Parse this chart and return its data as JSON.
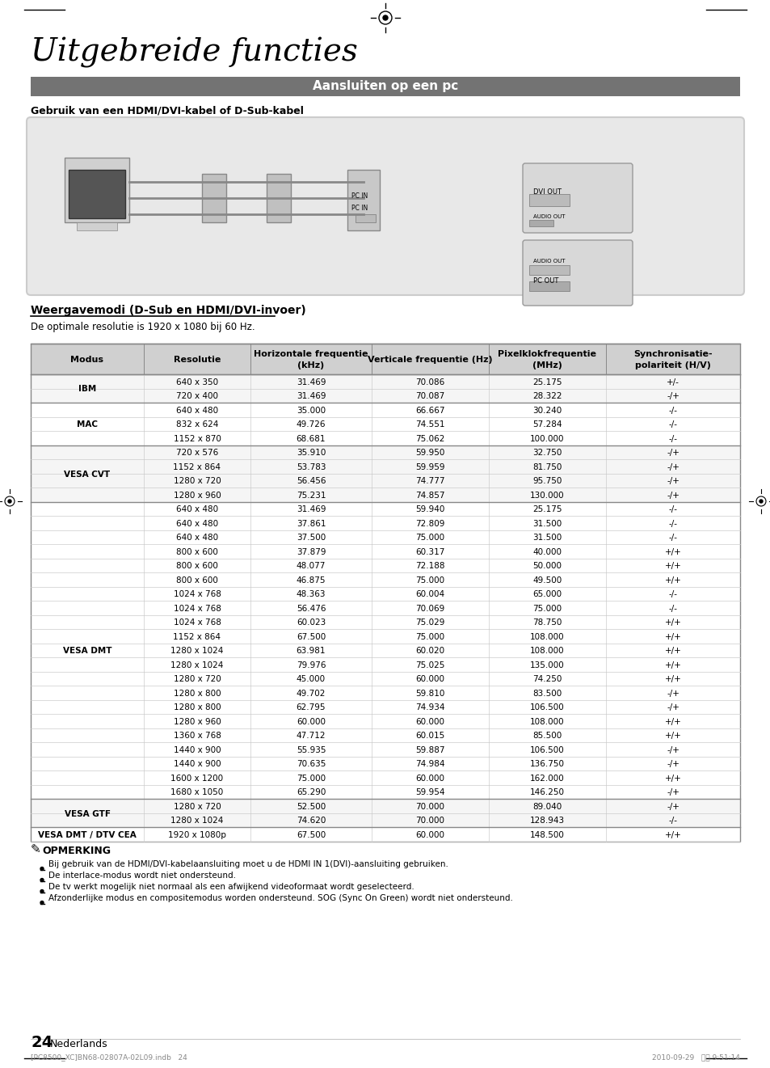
{
  "title": "Uitgebreide functies",
  "section_header": "Aansluiten op een pc",
  "subtitle": "Gebruik van een HDMI/DVI-kabel of D-Sub-kabel",
  "section2_header": "Weergavemodi (D-Sub en HDMI/DVI-invoer)",
  "section2_sub": "De optimale resolutie is 1920 x 1080 bij 60 Hz.",
  "col_headers": [
    "Modus",
    "Resolutie",
    "Horizontale frequentie\n(kHz)",
    "Verticale frequentie (Hz)",
    "Pixelklokfrequentie\n(MHz)",
    "Synchronisatie-\npolariteit (H/V)"
  ],
  "table_data": [
    [
      "IBM",
      "640 x 350",
      "31.469",
      "70.086",
      "25.175",
      "+/-"
    ],
    [
      "",
      "720 x 400",
      "31.469",
      "70.087",
      "28.322",
      "-/+"
    ],
    [
      "MAC",
      "640 x 480",
      "35.000",
      "66.667",
      "30.240",
      "-/-"
    ],
    [
      "",
      "832 x 624",
      "49.726",
      "74.551",
      "57.284",
      "-/-"
    ],
    [
      "",
      "1152 x 870",
      "68.681",
      "75.062",
      "100.000",
      "-/-"
    ],
    [
      "VESA CVT",
      "720 x 576",
      "35.910",
      "59.950",
      "32.750",
      "-/+"
    ],
    [
      "",
      "1152 x 864",
      "53.783",
      "59.959",
      "81.750",
      "-/+"
    ],
    [
      "",
      "1280 x 720",
      "56.456",
      "74.777",
      "95.750",
      "-/+"
    ],
    [
      "",
      "1280 x 960",
      "75.231",
      "74.857",
      "130.000",
      "-/+"
    ],
    [
      "VESA DMT",
      "640 x 480",
      "31.469",
      "59.940",
      "25.175",
      "-/-"
    ],
    [
      "",
      "640 x 480",
      "37.861",
      "72.809",
      "31.500",
      "-/-"
    ],
    [
      "",
      "640 x 480",
      "37.500",
      "75.000",
      "31.500",
      "-/-"
    ],
    [
      "",
      "800 x 600",
      "37.879",
      "60.317",
      "40.000",
      "+/+"
    ],
    [
      "",
      "800 x 600",
      "48.077",
      "72.188",
      "50.000",
      "+/+"
    ],
    [
      "",
      "800 x 600",
      "46.875",
      "75.000",
      "49.500",
      "+/+"
    ],
    [
      "",
      "1024 x 768",
      "48.363",
      "60.004",
      "65.000",
      "-/-"
    ],
    [
      "",
      "1024 x 768",
      "56.476",
      "70.069",
      "75.000",
      "-/-"
    ],
    [
      "",
      "1024 x 768",
      "60.023",
      "75.029",
      "78.750",
      "+/+"
    ],
    [
      "",
      "1152 x 864",
      "67.500",
      "75.000",
      "108.000",
      "+/+"
    ],
    [
      "",
      "1280 x 1024",
      "63.981",
      "60.020",
      "108.000",
      "+/+"
    ],
    [
      "",
      "1280 x 1024",
      "79.976",
      "75.025",
      "135.000",
      "+/+"
    ],
    [
      "",
      "1280 x 720",
      "45.000",
      "60.000",
      "74.250",
      "+/+"
    ],
    [
      "",
      "1280 x 800",
      "49.702",
      "59.810",
      "83.500",
      "-/+"
    ],
    [
      "",
      "1280 x 800",
      "62.795",
      "74.934",
      "106.500",
      "-/+"
    ],
    [
      "",
      "1280 x 960",
      "60.000",
      "60.000",
      "108.000",
      "+/+"
    ],
    [
      "",
      "1360 x 768",
      "47.712",
      "60.015",
      "85.500",
      "+/+"
    ],
    [
      "",
      "1440 x 900",
      "55.935",
      "59.887",
      "106.500",
      "-/+"
    ],
    [
      "",
      "1440 x 900",
      "70.635",
      "74.984",
      "136.750",
      "-/+"
    ],
    [
      "",
      "1600 x 1200",
      "75.000",
      "60.000",
      "162.000",
      "+/+"
    ],
    [
      "",
      "1680 x 1050",
      "65.290",
      "59.954",
      "146.250",
      "-/+"
    ],
    [
      "VESA GTF",
      "1280 x 720",
      "52.500",
      "70.000",
      "89.040",
      "-/+"
    ],
    [
      "",
      "1280 x 1024",
      "74.620",
      "70.000",
      "128.943",
      "-/-"
    ],
    [
      "VESA DMT / DTV CEA",
      "1920 x 1080p",
      "67.500",
      "60.000",
      "148.500",
      "+/+"
    ]
  ],
  "notes": [
    "Bij gebruik van de HDMI/DVI-kabelaansluiting moet u de HDMI IN 1(DVI)-aansluiting gebruiken.",
    "De interlace-modus wordt niet ondersteund.",
    "De tv werkt mogelijk niet normaal als een afwijkend videoformaat wordt geselecteerd.",
    "Afzonderlijke modus en compositemodus worden ondersteund. SOG (Sync On Green) wordt niet ondersteund."
  ],
  "page_num": "24",
  "page_lang": "Nederlands",
  "footer_left": "[PC8500_XC]BN68-02807A-02L09.indb   24",
  "footer_right": "2010-09-29   오전 9:51:14",
  "header_color": "#666666",
  "table_header_bg": "#d0d0d0",
  "table_alt_bg": "#f0f0f0",
  "section_header_bg": "#737373",
  "section_header_fg": "#ffffff"
}
